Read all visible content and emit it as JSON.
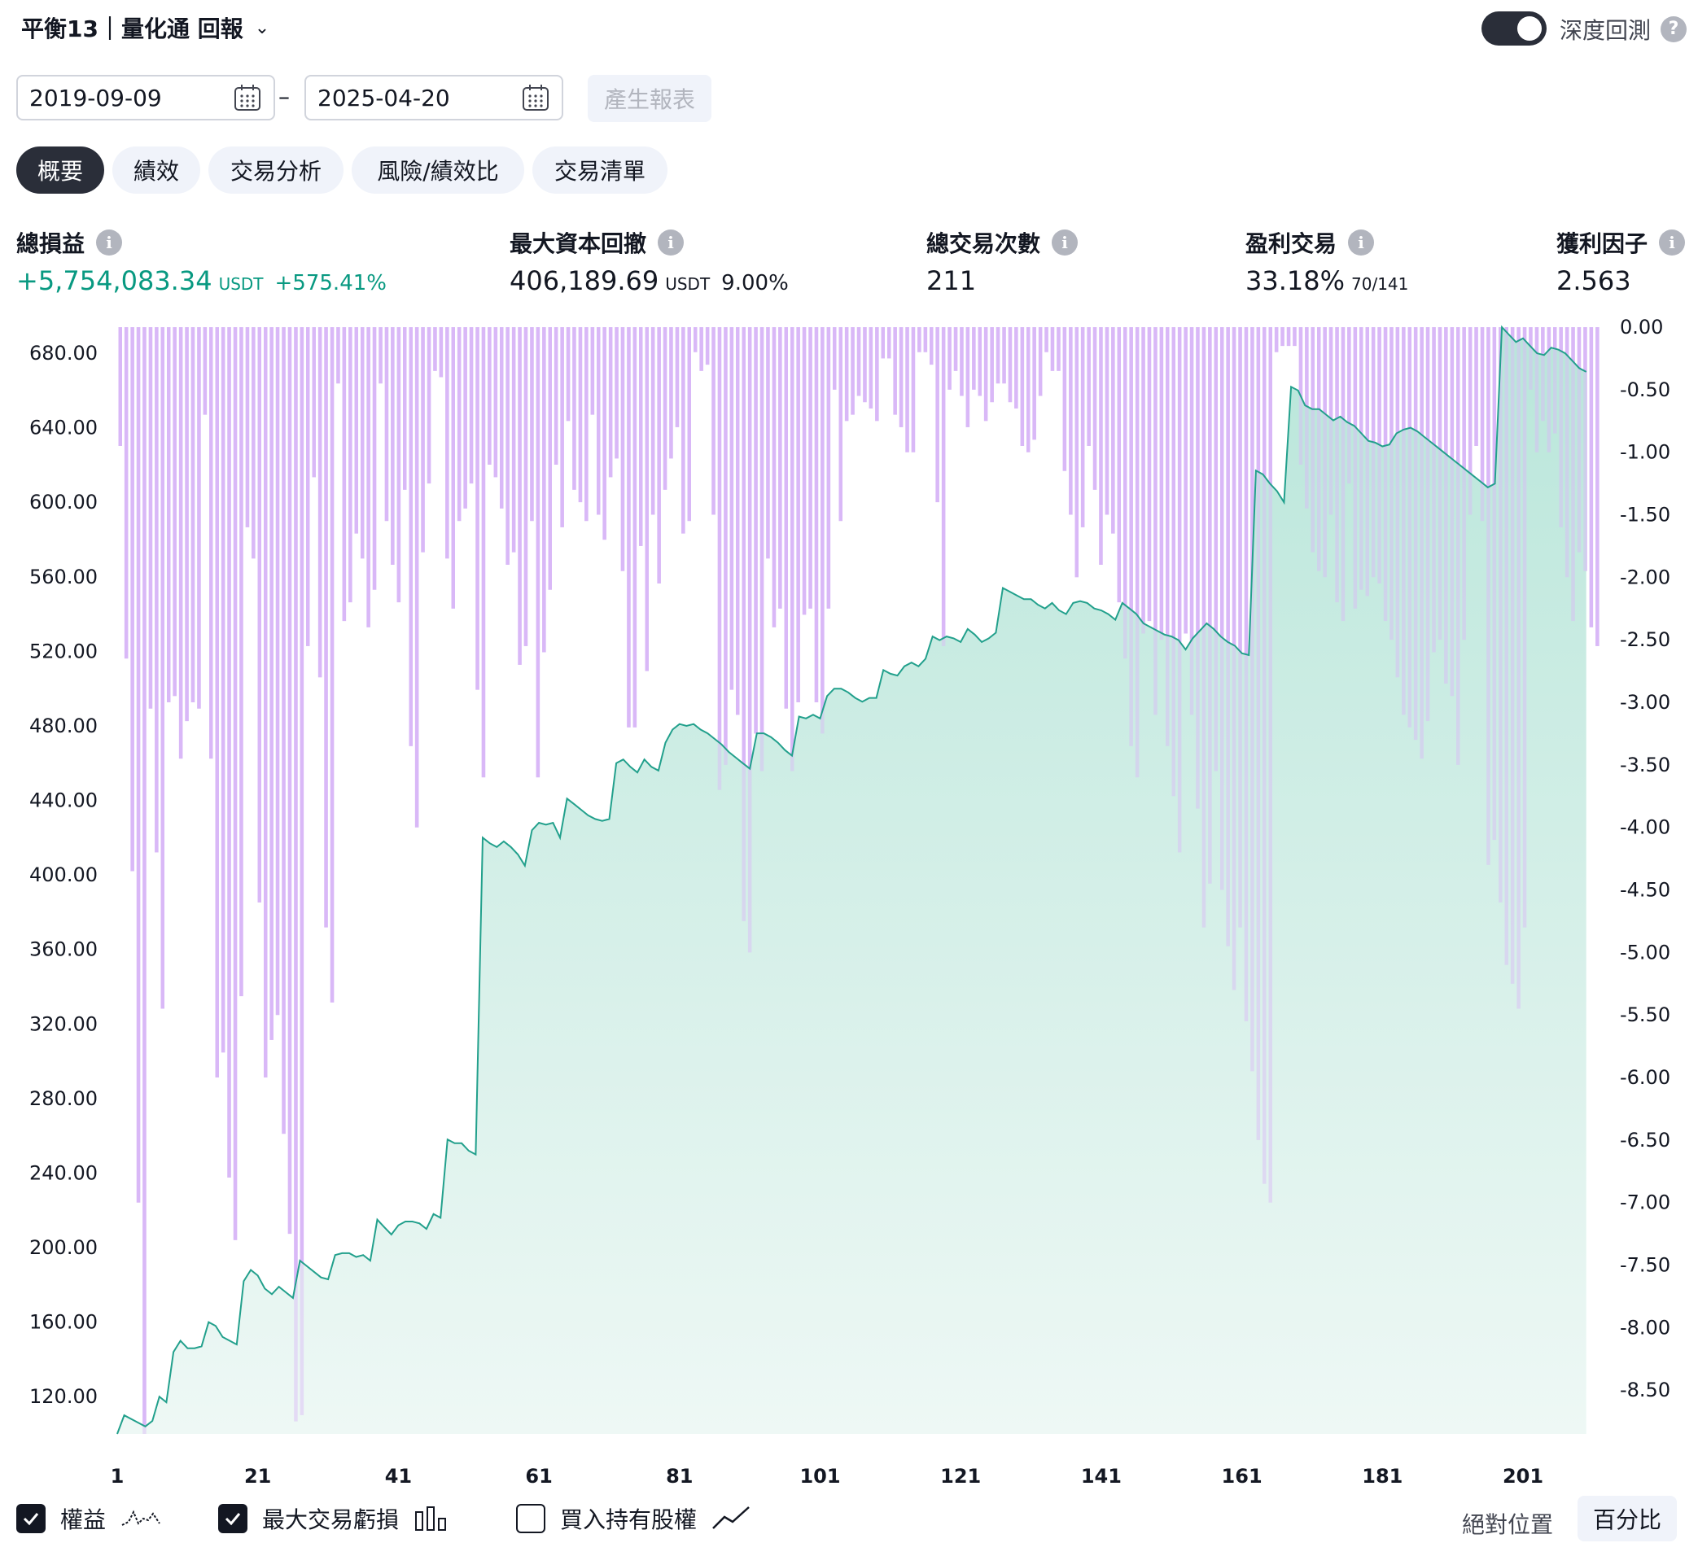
{
  "header": {
    "title": "平衡13｜量化通 回報",
    "deep_backtest_label": "深度回測",
    "deep_backtest_on": true,
    "help_glyph": "?"
  },
  "dates": {
    "start": "2019-09-09",
    "end": "2025-04-20",
    "separator": "–",
    "generate_label": "產生報表"
  },
  "tabs": [
    {
      "label": "概要",
      "active": true
    },
    {
      "label": "績效",
      "active": false
    },
    {
      "label": "交易分析",
      "active": false
    },
    {
      "label": "風險/績效比",
      "active": false
    },
    {
      "label": "交易清單",
      "active": false
    }
  ],
  "metrics": {
    "net_profit": {
      "label": "總損益",
      "value": "+5,754,083.34",
      "unit": "USDT",
      "pct": "+575.41%"
    },
    "max_drawdown": {
      "label": "最大資本回撤",
      "value": "406,189.69",
      "unit": "USDT",
      "pct": "9.00%"
    },
    "total_trades": {
      "label": "總交易次數",
      "value": "211"
    },
    "profitable": {
      "label": "盈利交易",
      "value": "33.18%",
      "ratio": "70/141"
    },
    "profit_factor": {
      "label": "獲利因子",
      "value": "2.563"
    }
  },
  "legend": {
    "equity": {
      "label": "權益",
      "checked": true
    },
    "max_trade_loss": {
      "label": "最大交易虧損",
      "checked": true
    },
    "buy_hold": {
      "label": "買入持有股權",
      "checked": false
    },
    "absolute_label": "絕對位置",
    "percent_label": "百分比"
  },
  "colors": {
    "equity_line": "#22a08c",
    "equity_fill_top": "#b9e6da",
    "equity_fill_bottom": "#eef8f5",
    "drawdown_bar": "#d9b8f7",
    "accent_green": "#089981",
    "dark": "#2a2e39"
  },
  "chart_data": {
    "type": "line+bar",
    "x_ticks": [
      1,
      21,
      41,
      61,
      81,
      101,
      121,
      141,
      161,
      181,
      201
    ],
    "x_range": [
      1,
      212
    ],
    "left_axis": {
      "ticks": [
        680,
        640,
        600,
        560,
        520,
        480,
        440,
        400,
        360,
        320,
        280,
        240,
        200,
        160,
        120
      ],
      "range": [
        100,
        694
      ],
      "decimals": 2
    },
    "right_axis": {
      "ticks": [
        0,
        -0.5,
        -1,
        -1.5,
        -2,
        -2.5,
        -3,
        -3.5,
        -4,
        -4.5,
        -5,
        -5.5,
        -6,
        -6.5,
        -7,
        -7.5,
        -8,
        -8.5
      ],
      "range": [
        -8.85,
        0
      ],
      "decimals": 2
    },
    "equity": [
      [
        1,
        100
      ],
      [
        2,
        110
      ],
      [
        4,
        106
      ],
      [
        5,
        104
      ],
      [
        6,
        107
      ],
      [
        7,
        120
      ],
      [
        8,
        117
      ],
      [
        9,
        144
      ],
      [
        10,
        150
      ],
      [
        11,
        146
      ],
      [
        12,
        146
      ],
      [
        13,
        147
      ],
      [
        14,
        160
      ],
      [
        15,
        158
      ],
      [
        16,
        152
      ],
      [
        17,
        150
      ],
      [
        18,
        148
      ],
      [
        19,
        182
      ],
      [
        20,
        188
      ],
      [
        21,
        185
      ],
      [
        22,
        178
      ],
      [
        23,
        175
      ],
      [
        24,
        179
      ],
      [
        25,
        176
      ],
      [
        26,
        173
      ],
      [
        27,
        193
      ],
      [
        28,
        190
      ],
      [
        29,
        187
      ],
      [
        30,
        184
      ],
      [
        31,
        183
      ],
      [
        32,
        196
      ],
      [
        33,
        197
      ],
      [
        34,
        197
      ],
      [
        35,
        195
      ],
      [
        36,
        196
      ],
      [
        37,
        193
      ],
      [
        38,
        215
      ],
      [
        39,
        211
      ],
      [
        40,
        207
      ],
      [
        41,
        212
      ],
      [
        42,
        214
      ],
      [
        43,
        214
      ],
      [
        44,
        213
      ],
      [
        45,
        210
      ],
      [
        46,
        218
      ],
      [
        47,
        216
      ],
      [
        48,
        258
      ],
      [
        49,
        256
      ],
      [
        50,
        256
      ],
      [
        51,
        252
      ],
      [
        52,
        250
      ],
      [
        53,
        420
      ],
      [
        54,
        417
      ],
      [
        55,
        415
      ],
      [
        56,
        418
      ],
      [
        57,
        415
      ],
      [
        58,
        411
      ],
      [
        59,
        405
      ],
      [
        60,
        424
      ],
      [
        61,
        428
      ],
      [
        62,
        427
      ],
      [
        63,
        428
      ],
      [
        64,
        420
      ],
      [
        65,
        441
      ],
      [
        66,
        438
      ],
      [
        67,
        435
      ],
      [
        68,
        432
      ],
      [
        69,
        430
      ],
      [
        70,
        429
      ],
      [
        71,
        430
      ],
      [
        72,
        460
      ],
      [
        73,
        462
      ],
      [
        74,
        458
      ],
      [
        75,
        455
      ],
      [
        76,
        462
      ],
      [
        77,
        458
      ],
      [
        78,
        456
      ],
      [
        79,
        471
      ],
      [
        80,
        478
      ],
      [
        81,
        481
      ],
      [
        82,
        480
      ],
      [
        83,
        481
      ],
      [
        84,
        478
      ],
      [
        85,
        476
      ],
      [
        86,
        473
      ],
      [
        87,
        470
      ],
      [
        88,
        466
      ],
      [
        89,
        463
      ],
      [
        90,
        460
      ],
      [
        91,
        457
      ],
      [
        92,
        476
      ],
      [
        93,
        476
      ],
      [
        94,
        474
      ],
      [
        95,
        471
      ],
      [
        96,
        467
      ],
      [
        97,
        464
      ],
      [
        98,
        485
      ],
      [
        99,
        484
      ],
      [
        100,
        486
      ],
      [
        101,
        484
      ],
      [
        102,
        496
      ],
      [
        103,
        500
      ],
      [
        104,
        500
      ],
      [
        105,
        498
      ],
      [
        106,
        495
      ],
      [
        107,
        493
      ],
      [
        108,
        495
      ],
      [
        109,
        495
      ],
      [
        110,
        510
      ],
      [
        111,
        508
      ],
      [
        112,
        507
      ],
      [
        113,
        512
      ],
      [
        114,
        514
      ],
      [
        115,
        512
      ],
      [
        116,
        516
      ],
      [
        117,
        528
      ],
      [
        118,
        526
      ],
      [
        119,
        528
      ],
      [
        120,
        527
      ],
      [
        121,
        525
      ],
      [
        122,
        532
      ],
      [
        123,
        529
      ],
      [
        124,
        525
      ],
      [
        125,
        527
      ],
      [
        126,
        530
      ],
      [
        127,
        554
      ],
      [
        128,
        552
      ],
      [
        129,
        550
      ],
      [
        130,
        548
      ],
      [
        131,
        548
      ],
      [
        132,
        545
      ],
      [
        133,
        543
      ],
      [
        134,
        546
      ],
      [
        135,
        542
      ],
      [
        136,
        540
      ],
      [
        137,
        546
      ],
      [
        138,
        547
      ],
      [
        139,
        546
      ],
      [
        140,
        543
      ],
      [
        141,
        542
      ],
      [
        142,
        540
      ],
      [
        143,
        537
      ],
      [
        144,
        546
      ],
      [
        145,
        543
      ],
      [
        146,
        540
      ],
      [
        147,
        535
      ],
      [
        148,
        533
      ],
      [
        149,
        531
      ],
      [
        150,
        529
      ],
      [
        151,
        528
      ],
      [
        152,
        526
      ],
      [
        153,
        521
      ],
      [
        154,
        527
      ],
      [
        155,
        531
      ],
      [
        156,
        535
      ],
      [
        157,
        532
      ],
      [
        158,
        528
      ],
      [
        159,
        525
      ],
      [
        160,
        523
      ],
      [
        161,
        519
      ],
      [
        162,
        518
      ],
      [
        163,
        617
      ],
      [
        164,
        615
      ],
      [
        165,
        610
      ],
      [
        166,
        606
      ],
      [
        167,
        600
      ],
      [
        168,
        662
      ],
      [
        169,
        660
      ],
      [
        170,
        652
      ],
      [
        171,
        650
      ],
      [
        172,
        650
      ],
      [
        173,
        647
      ],
      [
        174,
        644
      ],
      [
        175,
        646
      ],
      [
        176,
        643
      ],
      [
        177,
        641
      ],
      [
        178,
        637
      ],
      [
        179,
        633
      ],
      [
        180,
        632
      ],
      [
        181,
        630
      ],
      [
        182,
        631
      ],
      [
        183,
        637
      ],
      [
        184,
        639
      ],
      [
        185,
        640
      ],
      [
        186,
        638
      ],
      [
        187,
        635
      ],
      [
        188,
        632
      ],
      [
        189,
        629
      ],
      [
        190,
        626
      ],
      [
        191,
        623
      ],
      [
        192,
        620
      ],
      [
        193,
        617
      ],
      [
        194,
        614
      ],
      [
        195,
        611
      ],
      [
        196,
        608
      ],
      [
        197,
        610
      ],
      [
        198,
        694
      ],
      [
        199,
        690
      ],
      [
        200,
        686
      ],
      [
        201,
        688
      ],
      [
        202,
        684
      ],
      [
        203,
        680
      ],
      [
        204,
        679
      ],
      [
        205,
        683
      ],
      [
        206,
        682
      ],
      [
        207,
        680
      ],
      [
        208,
        676
      ],
      [
        209,
        672
      ],
      [
        210,
        670
      ]
    ],
    "max_trade_loss": [
      -0.95,
      -2.65,
      -4.35,
      -7.0,
      -8.85,
      -3.05,
      -4.2,
      -5.45,
      -3.0,
      -2.95,
      -3.45,
      -3.15,
      -3.0,
      -3.05,
      -0.7,
      -3.45,
      -6.0,
      -5.8,
      -6.8,
      -7.3,
      -5.35,
      -1.6,
      -1.85,
      -4.6,
      -6.0,
      -5.7,
      -5.5,
      -6.45,
      -7.25,
      -8.75,
      -8.7,
      -2.55,
      -1.2,
      -2.8,
      -4.8,
      -5.4,
      -0.45,
      -2.35,
      -2.2,
      -1.65,
      -1.85,
      -2.4,
      -2.1,
      -0.45,
      -1.55,
      -1.9,
      -2.2,
      -1.3,
      -3.35,
      -4.0,
      -1.8,
      -1.25,
      -0.35,
      -0.4,
      -1.85,
      -2.25,
      -1.55,
      -1.45,
      -1.25,
      -2.9,
      -3.6,
      -1.1,
      -1.2,
      -1.45,
      -1.9,
      -1.8,
      -2.7,
      -2.55,
      -1.55,
      -3.6,
      -2.6,
      -2.1,
      -1.1,
      -1.6,
      -0.75,
      -1.3,
      -1.4,
      -1.55,
      -0.7,
      -1.5,
      -1.7,
      -1.2,
      -1.05,
      -1.95,
      -3.2,
      -3.2,
      -1.75,
      -2.75,
      -1.5,
      -2.05,
      -1.3,
      -1.05,
      -0.8,
      -1.65,
      -1.55,
      -0.2,
      -0.35,
      -0.3,
      -1.5,
      -3.7,
      -3.5,
      -2.9,
      -3.1,
      -4.75,
      -5.0,
      -3.25,
      -3.55,
      -1.85,
      -2.4,
      -2.25,
      -3.05,
      -3.55,
      -3.0,
      -2.3,
      -2.25,
      -3.0,
      -3.25,
      -2.25,
      -0.5,
      -1.55,
      -0.75,
      -0.7,
      -0.55,
      -0.6,
      -0.65,
      -0.75,
      -0.25,
      -0.25,
      -0.7,
      -0.8,
      -1.0,
      -1.0,
      -0.2,
      -0.2,
      -0.3,
      -1.4,
      -2.55,
      -0.5,
      -0.35,
      -0.55,
      -0.8,
      -0.5,
      -0.55,
      -0.75,
      -0.6,
      -0.45,
      -0.45,
      -0.6,
      -0.65,
      -0.95,
      -1.0,
      -0.9,
      -0.55,
      -0.2,
      -0.35,
      -0.35,
      -1.15,
      -1.5,
      -2.0,
      -1.6,
      -0.95,
      -1.3,
      -1.9,
      -1.5,
      -1.65,
      -2.2,
      -2.65,
      -3.35,
      -3.6,
      -2.45,
      -2.35,
      -3.1,
      -2.5,
      -3.35,
      -3.75,
      -4.2,
      -2.45,
      -3.1,
      -3.85,
      -4.8,
      -4.45,
      -3.55,
      -4.5,
      -4.95,
      -5.3,
      -4.8,
      -5.55,
      -5.95,
      -6.5,
      -6.85,
      -7.0,
      -0.2,
      -0.15,
      -0.15,
      -0.15,
      -1.1,
      -1.45,
      -1.8,
      -1.95,
      -2.0,
      -1.5,
      -2.2,
      -2.35,
      -1.25,
      -2.25,
      -2.1,
      -2.15,
      -2.0,
      -2.05,
      -2.35,
      -2.5,
      -2.8,
      -3.1,
      -3.2,
      -3.3,
      -3.45,
      -3.15,
      -2.6,
      -2.5,
      -2.85,
      -2.95,
      -3.5,
      -2.5,
      -1.5,
      -0.95,
      -1.55,
      -4.3,
      -4.1,
      -4.6,
      -5.1,
      -5.25,
      -5.45,
      -4.8,
      -0.5,
      -1.0,
      -0.75,
      -1.0,
      -0.85,
      -1.6,
      -2.0,
      -2.35,
      -1.8,
      -1.95,
      -2.4,
      -2.55
    ]
  }
}
